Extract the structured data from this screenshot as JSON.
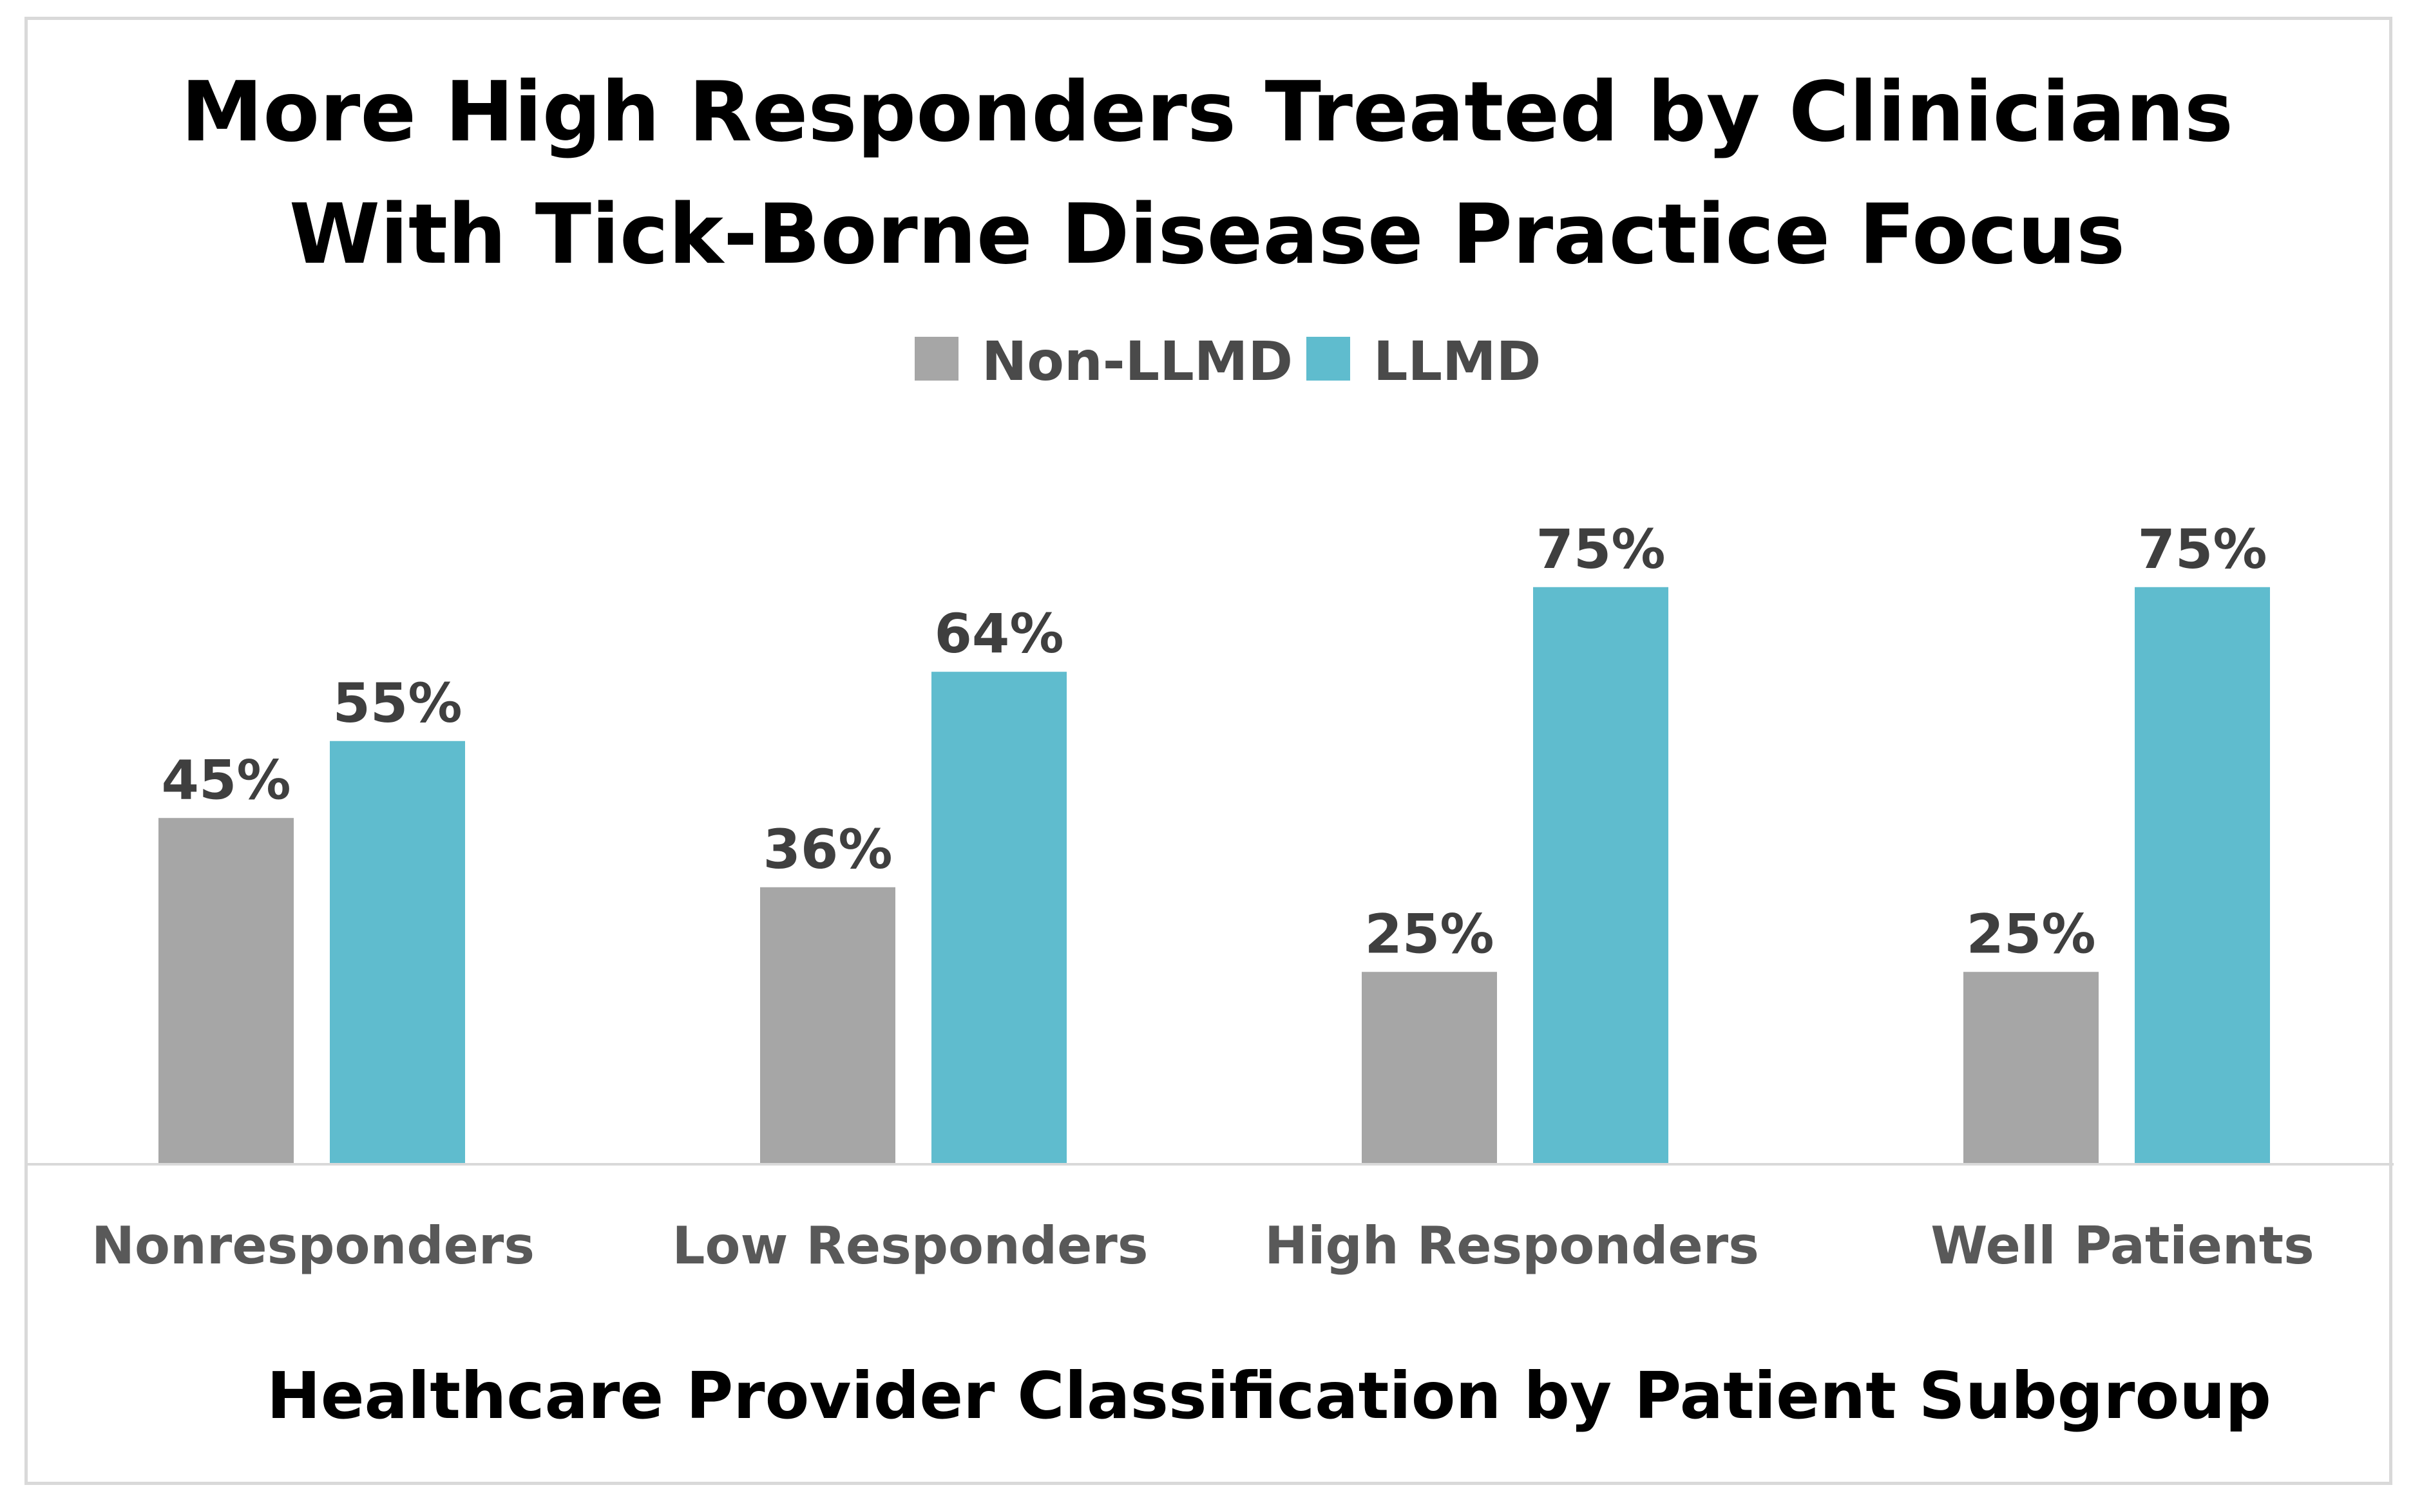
{
  "chart_data": {
    "type": "bar",
    "title": "More High Responders Treated by Clinicians With Tick-Borne Disease Practice Focus",
    "title_lines": [
      "More High Responders Treated by Clinicians",
      "With Tick-Borne Disease Practice Focus"
    ],
    "xlabel": "Healthcare Provider Classification by Patient Subgroup",
    "ylabel": "",
    "ylim": [
      0,
      100
    ],
    "grid": false,
    "legend_position": "top-center",
    "categories": [
      "Nonresponders",
      "Low Responders",
      "High Responders",
      "Well Patients"
    ],
    "series": [
      {
        "name": "Non-LLMD",
        "color": "#a6a6a6",
        "values": [
          45,
          36,
          25,
          25
        ],
        "labels": [
          "45%",
          "36%",
          "25%",
          "25%"
        ]
      },
      {
        "name": "LLMD",
        "color": "#5fbcce",
        "values": [
          55,
          64,
          75,
          75
        ],
        "labels": [
          "55%",
          "64%",
          "75%",
          "75%"
        ]
      }
    ]
  }
}
